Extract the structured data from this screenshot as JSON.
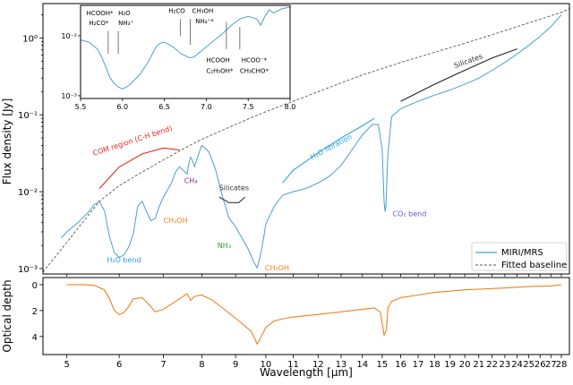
{
  "chart_data": [
    {
      "type": "line",
      "panel": "top",
      "yscale": "log",
      "xlabel": "",
      "ylabel": "Flux density [Jy]",
      "xlim": [
        4.6,
        28.8
      ],
      "ylim": [
        0.00085,
        2.8
      ],
      "yticks": [
        0.001,
        0.01,
        0.1,
        1.0
      ],
      "ytick_labels": [
        "10⁻³",
        "10⁻²",
        "10⁻¹",
        "10⁰"
      ],
      "legend_position": "bottom-right",
      "series": [
        {
          "name": "MIRI/MRS",
          "color": "#4a9fd1",
          "style": "solid",
          "x": [
            4.9,
            5.0,
            5.2,
            5.4,
            5.5,
            5.6,
            5.7,
            5.8,
            5.9,
            6.0,
            6.1,
            6.2,
            6.3,
            6.4,
            6.5,
            6.6,
            6.7,
            6.8,
            6.9,
            7.0,
            7.2,
            7.3,
            7.4,
            7.5,
            7.6,
            7.65,
            7.7,
            7.75,
            7.8,
            7.9,
            8.0,
            8.2,
            8.4,
            8.6,
            8.8,
            9.0,
            9.2,
            9.4,
            9.6,
            9.7,
            9.8,
            9.9,
            10.0,
            10.3,
            10.6,
            11.0,
            11.5,
            12.0,
            12.5,
            13.0,
            13.5,
            14.0,
            14.5,
            14.8,
            15.0,
            15.1,
            15.15,
            15.2,
            15.3,
            15.5,
            16,
            17,
            18,
            19,
            20,
            21,
            22,
            23,
            24,
            25,
            26,
            27,
            28
          ],
          "y": [
            0.0025,
            0.003,
            0.004,
            0.0055,
            0.0068,
            0.0075,
            0.0056,
            0.0026,
            0.0016,
            0.0014,
            0.0015,
            0.0019,
            0.0028,
            0.0065,
            0.0075,
            0.0055,
            0.0042,
            0.0045,
            0.0065,
            0.0085,
            0.013,
            0.018,
            0.021,
            0.019,
            0.017,
            0.024,
            0.028,
            0.025,
            0.021,
            0.03,
            0.04,
            0.033,
            0.019,
            0.0085,
            0.0045,
            0.0035,
            0.0025,
            0.0018,
            0.0012,
            0.00102,
            0.0014,
            0.0022,
            0.0038,
            0.0065,
            0.009,
            0.01,
            0.011,
            0.013,
            0.016,
            0.022,
            0.035,
            0.055,
            0.075,
            0.075,
            0.035,
            0.0075,
            0.0055,
            0.0065,
            0.03,
            0.095,
            0.12,
            0.15,
            0.18,
            0.21,
            0.25,
            0.3,
            0.38,
            0.48,
            0.62,
            0.8,
            1.05,
            1.4,
            2.0
          ]
        },
        {
          "name": "Fitted baseline",
          "color": "#555555",
          "style": "dashed",
          "x": [
            4.6,
            5.0,
            5.6,
            6.0,
            6.5,
            7.0,
            7.5,
            8.0,
            9.0,
            10.0,
            11.0,
            12.0,
            13.0,
            14.0,
            15.0,
            16.0,
            18.0,
            20.0,
            22.0,
            24.0,
            26.0,
            28.0,
            28.8
          ],
          "y": [
            0.0009,
            0.0022,
            0.0075,
            0.012,
            0.018,
            0.026,
            0.036,
            0.048,
            0.075,
            0.11,
            0.15,
            0.2,
            0.26,
            0.33,
            0.4,
            0.48,
            0.65,
            0.85,
            1.1,
            1.4,
            1.75,
            2.15,
            2.4
          ]
        }
      ],
      "highlight_arcs": [
        {
          "color": "#e8291c",
          "x": [
            5.6,
            6.0,
            6.5,
            7.0,
            7.4
          ],
          "y": [
            0.011,
            0.021,
            0.031,
            0.037,
            0.035
          ]
        },
        {
          "color": "#333333",
          "x": [
            8.5,
            8.8,
            9.1,
            9.3
          ],
          "y": [
            0.0085,
            0.0072,
            0.0072,
            0.0085
          ]
        },
        {
          "color": "#2aa3e3",
          "x": [
            10.6,
            11,
            12,
            13,
            14,
            14.6
          ],
          "y": [
            0.013,
            0.019,
            0.032,
            0.05,
            0.072,
            0.09
          ]
        },
        {
          "color": "#222222",
          "x": [
            16,
            18,
            20,
            22,
            24
          ],
          "y": [
            0.15,
            0.25,
            0.38,
            0.55,
            0.72
          ]
        }
      ],
      "annotations": [
        {
          "text": "COM region (C-H  bend)",
          "color": "#e8291c",
          "x": 6.3,
          "y": 0.043,
          "rotate": -18
        },
        {
          "text": "CH₄",
          "color": "#8b2a8b",
          "x": 7.7,
          "y": 0.013
        },
        {
          "text": "Silicates",
          "color": "#333333",
          "x": 8.95,
          "y": 0.0105
        },
        {
          "text": "H₂O libration",
          "color": "#2aa3e3",
          "x": 12.6,
          "y": 0.036,
          "rotate": -28
        },
        {
          "text": "Silicates",
          "color": "#333333",
          "x": 20.3,
          "y": 0.47,
          "rotate": -20
        },
        {
          "text": "CH₃OH",
          "color": "#f28020",
          "x": 7.3,
          "y": 0.0039
        },
        {
          "text": "H₂O bend",
          "color": "#2aa3e3",
          "x": 6.1,
          "y": 0.0012
        },
        {
          "text": "NH₃",
          "color": "#2ea32e",
          "x": 8.65,
          "y": 0.00185
        },
        {
          "text": "CH₃OH",
          "color": "#f28020",
          "x": 10.4,
          "y": 0.00095
        },
        {
          "text": "CO₂ bend",
          "color": "#5b5bd1",
          "x": 16.5,
          "y": 0.0048
        }
      ]
    },
    {
      "type": "line",
      "panel": "inset",
      "yscale": "log",
      "xlim": [
        5.5,
        8.0
      ],
      "ylim": [
        0.0009,
        0.032
      ],
      "xticks": [
        5.5,
        6.0,
        6.5,
        7.0,
        7.5,
        8.0
      ],
      "xtick_labels": [
        "5.5",
        "6.0",
        "6.5",
        "7.0",
        "7.5",
        "8.0"
      ],
      "yticks": [
        0.001,
        0.01
      ],
      "ytick_labels": [
        "10⁻³",
        "10⁻²"
      ],
      "series": [
        {
          "name": "",
          "color": "#4a9fd1",
          "x": [
            5.5,
            5.6,
            5.7,
            5.75,
            5.8,
            5.85,
            5.9,
            5.95,
            6.0,
            6.05,
            6.1,
            6.2,
            6.3,
            6.4,
            6.45,
            6.5,
            6.6,
            6.7,
            6.8,
            6.85,
            6.9,
            7.0,
            7.1,
            7.2,
            7.3,
            7.4,
            7.5,
            7.6,
            7.65,
            7.7,
            7.75,
            7.8,
            7.9,
            8.0
          ],
          "y": [
            0.0085,
            0.0078,
            0.006,
            0.0045,
            0.003,
            0.002,
            0.0016,
            0.0014,
            0.0013,
            0.0014,
            0.0016,
            0.0022,
            0.0035,
            0.0065,
            0.0075,
            0.0078,
            0.0066,
            0.005,
            0.0043,
            0.0044,
            0.005,
            0.0065,
            0.0085,
            0.011,
            0.015,
            0.019,
            0.021,
            0.019,
            0.015,
            0.021,
            0.027,
            0.024,
            0.028,
            0.03
          ]
        }
      ],
      "annotations": [
        {
          "text": "HCOOH*",
          "x": 5.57,
          "y": 0.022
        },
        {
          "text": "H₂CO*",
          "x": 5.6,
          "y": 0.015
        },
        {
          "text": "H₂O",
          "x": 5.95,
          "y": 0.022
        },
        {
          "text": "NH₃⁺",
          "x": 5.95,
          "y": 0.015
        },
        {
          "text": "H₂CO",
          "x": 6.55,
          "y": 0.024
        },
        {
          "text": "CH₃OH",
          "x": 6.83,
          "y": 0.024
        },
        {
          "text": "NH₄⁺*",
          "x": 6.87,
          "y": 0.016
        },
        {
          "text": "HCOOH",
          "x": 7.0,
          "y": 0.0036
        },
        {
          "text": "C₂H₅OH*",
          "x": 7.0,
          "y": 0.0024
        },
        {
          "text": "HCOO⁻*",
          "x": 7.42,
          "y": 0.0036
        },
        {
          "text": "CH₃CHO*",
          "x": 7.4,
          "y": 0.0024
        }
      ],
      "marker_lines": [
        {
          "x": 5.83,
          "y_top": 0.012,
          "y_bottom": 0.005
        },
        {
          "x": 5.95,
          "y_top": 0.012,
          "y_bottom": 0.005
        },
        {
          "x": 6.69,
          "y_top": 0.019,
          "y_bottom": 0.01
        },
        {
          "x": 6.81,
          "y_top": 0.019,
          "y_bottom": 0.007
        },
        {
          "x": 7.24,
          "y_top": 0.006,
          "y_bottom": 0.017
        },
        {
          "x": 7.4,
          "y_top": 0.006,
          "y_bottom": 0.014
        }
      ]
    },
    {
      "type": "line",
      "panel": "bottom",
      "xlabel": "Wavelength [μm]",
      "ylabel": "Optical depth",
      "xlim": [
        4.6,
        28.8
      ],
      "ylim": [
        5.4,
        -0.55
      ],
      "yticks": [
        0,
        2,
        4
      ],
      "ytick_labels": [
        "0",
        "2",
        "4"
      ],
      "xticks": [
        5,
        6,
        7,
        8,
        9,
        10,
        11,
        12,
        13,
        14,
        15,
        16,
        17,
        18,
        19,
        20,
        21,
        22,
        23,
        24,
        25,
        26,
        27,
        28
      ],
      "xtick_labels": [
        "5",
        "6",
        "7",
        "8",
        "9",
        "10",
        "11",
        "12",
        "13",
        "14",
        "15",
        "16",
        "17",
        "18",
        "19",
        "20",
        "21",
        "22",
        "23",
        "24",
        "25",
        "26",
        "27",
        "28"
      ],
      "series": [
        {
          "name": "",
          "color": "#f0801f",
          "x": [
            5.0,
            5.3,
            5.5,
            5.7,
            5.8,
            5.9,
            6.0,
            6.1,
            6.2,
            6.3,
            6.5,
            6.7,
            6.8,
            7.0,
            7.3,
            7.6,
            7.7,
            7.8,
            8.0,
            8.3,
            8.6,
            9.0,
            9.3,
            9.5,
            9.65,
            9.7,
            9.8,
            10.0,
            10.3,
            10.7,
            11,
            12,
            13,
            14,
            14.6,
            14.9,
            15.0,
            15.1,
            15.2,
            15.25,
            15.3,
            15.5,
            16,
            17,
            18,
            19,
            20,
            21,
            22,
            23,
            24,
            25,
            26,
            27,
            28
          ],
          "y": [
            0,
            0,
            0.05,
            0.4,
            1.1,
            2.0,
            2.3,
            2.15,
            1.7,
            1.1,
            1.0,
            1.7,
            2.1,
            1.9,
            1.3,
            0.7,
            1.2,
            0.9,
            0.8,
            1.2,
            1.8,
            2.6,
            3.2,
            3.6,
            4.3,
            4.6,
            4.2,
            3.3,
            2.8,
            2.6,
            2.5,
            2.3,
            2.1,
            1.9,
            1.8,
            2.1,
            3.0,
            3.9,
            3.6,
            3.0,
            1.8,
            1.3,
            1.0,
            0.8,
            0.6,
            0.5,
            0.4,
            0.35,
            0.3,
            0.25,
            0.2,
            0.15,
            0.12,
            0.1,
            0
          ]
        }
      ]
    }
  ]
}
